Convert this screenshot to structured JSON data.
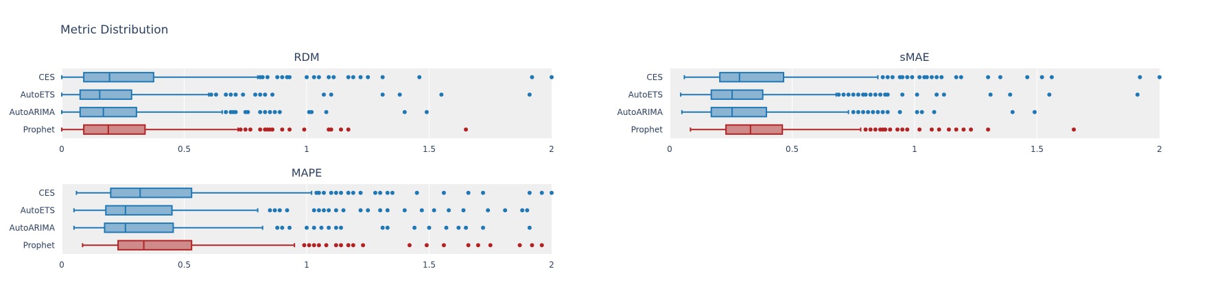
{
  "title": "Metric Distribution",
  "colors": {
    "blue": "#1f77b4",
    "blue_fill": "#8bb4d3",
    "red": "#b22222",
    "red_fill": "#cf8a8a",
    "plot_bg": "#efefef",
    "grid": "#ffffff",
    "text": "#2a3f5f"
  },
  "chart_data": [
    {
      "type": "box",
      "title": "RDM",
      "categories": [
        "CES",
        "AutoETS",
        "AutoARIMA",
        "Prophet"
      ],
      "xlim": [
        0,
        2
      ],
      "xticks": [
        "0",
        "0.5",
        "1",
        "1.5",
        "2"
      ],
      "series": [
        {
          "name": "CES",
          "color": "blue",
          "min": 0.0,
          "q1": 0.09,
          "median": 0.195,
          "q3": 0.375,
          "max": 0.8,
          "outliers": [
            0.81,
            0.82,
            0.84,
            0.88,
            0.9,
            0.92,
            0.93,
            1.0,
            1.03,
            1.05,
            1.09,
            1.11,
            1.17,
            1.19,
            1.22,
            1.25,
            1.31,
            1.46,
            1.92,
            2.0
          ]
        },
        {
          "name": "AutoETS",
          "color": "blue",
          "min": 0.0,
          "q1": 0.075,
          "median": 0.155,
          "q3": 0.285,
          "max": 0.6,
          "outliers": [
            0.61,
            0.63,
            0.67,
            0.69,
            0.71,
            0.74,
            0.79,
            0.81,
            0.83,
            0.86,
            1.07,
            1.1,
            1.31,
            1.38,
            1.55,
            1.91
          ]
        },
        {
          "name": "AutoARIMA",
          "color": "blue",
          "min": 0.0,
          "q1": 0.075,
          "median": 0.17,
          "q3": 0.305,
          "max": 0.655,
          "outliers": [
            0.67,
            0.69,
            0.7,
            0.71,
            0.75,
            0.76,
            0.81,
            0.83,
            0.85,
            0.87,
            0.89,
            1.01,
            1.02,
            1.08,
            1.4,
            1.49
          ]
        },
        {
          "name": "Prophet",
          "color": "red",
          "min": 0.0,
          "q1": 0.09,
          "median": 0.19,
          "q3": 0.34,
          "max": 0.72,
          "outliers": [
            0.73,
            0.75,
            0.77,
            0.81,
            0.83,
            0.84,
            0.85,
            0.86,
            0.9,
            0.93,
            0.99,
            1.09,
            1.1,
            1.14,
            1.17,
            1.65
          ]
        }
      ]
    },
    {
      "type": "box",
      "title": "sMAE",
      "categories": [
        "CES",
        "AutoETS",
        "AutoARIMA",
        "Prophet"
      ],
      "xlim": [
        0,
        2
      ],
      "xticks": [
        "0",
        "0.5",
        "1",
        "1.5",
        "2"
      ],
      "series": [
        {
          "name": "CES",
          "color": "blue",
          "min": 0.06,
          "q1": 0.205,
          "median": 0.285,
          "q3": 0.465,
          "max": 0.85,
          "outliers": [
            0.87,
            0.89,
            0.91,
            0.94,
            0.95,
            0.97,
            0.99,
            1.02,
            1.04,
            1.05,
            1.07,
            1.09,
            1.11,
            1.17,
            1.19,
            1.3,
            1.35,
            1.46,
            1.52,
            1.56,
            1.92,
            2.0
          ]
        },
        {
          "name": "AutoETS",
          "color": "blue",
          "min": 0.045,
          "q1": 0.17,
          "median": 0.255,
          "q3": 0.38,
          "max": 0.68,
          "outliers": [
            0.69,
            0.71,
            0.73,
            0.75,
            0.77,
            0.79,
            0.8,
            0.82,
            0.84,
            0.86,
            0.88,
            0.89,
            0.95,
            1.01,
            1.09,
            1.12,
            1.31,
            1.39,
            1.55,
            1.91
          ]
        },
        {
          "name": "AutoARIMA",
          "color": "blue",
          "min": 0.05,
          "q1": 0.17,
          "median": 0.255,
          "q3": 0.395,
          "max": 0.73,
          "outliers": [
            0.75,
            0.77,
            0.79,
            0.81,
            0.83,
            0.85,
            0.87,
            0.89,
            0.94,
            1.01,
            1.03,
            1.08,
            1.4,
            1.49
          ]
        },
        {
          "name": "Prophet",
          "color": "red",
          "min": 0.085,
          "q1": 0.23,
          "median": 0.33,
          "q3": 0.46,
          "max": 0.78,
          "outliers": [
            0.8,
            0.82,
            0.84,
            0.86,
            0.87,
            0.88,
            0.9,
            0.93,
            0.95,
            0.97,
            1.02,
            1.07,
            1.1,
            1.14,
            1.17,
            1.2,
            1.23,
            1.3,
            1.65
          ]
        }
      ]
    },
    {
      "type": "box",
      "title": "MAPE",
      "categories": [
        "CES",
        "AutoETS",
        "AutoARIMA",
        "Prophet"
      ],
      "xlim": [
        0,
        2
      ],
      "xticks": [
        "0",
        "0.5",
        "1",
        "1.5",
        "2"
      ],
      "series": [
        {
          "name": "CES",
          "color": "blue",
          "min": 0.06,
          "q1": 0.2,
          "median": 0.32,
          "q3": 0.53,
          "max": 1.02,
          "outliers": [
            1.04,
            1.05,
            1.07,
            1.1,
            1.12,
            1.14,
            1.17,
            1.19,
            1.22,
            1.28,
            1.3,
            1.33,
            1.35,
            1.45,
            1.56,
            1.66,
            1.72,
            1.91,
            1.96,
            2.0
          ]
        },
        {
          "name": "AutoETS",
          "color": "blue",
          "min": 0.05,
          "q1": 0.18,
          "median": 0.26,
          "q3": 0.45,
          "max": 0.8,
          "outliers": [
            0.85,
            0.87,
            0.89,
            0.92,
            1.03,
            1.05,
            1.07,
            1.09,
            1.12,
            1.15,
            1.22,
            1.25,
            1.3,
            1.33,
            1.4,
            1.47,
            1.52,
            1.58,
            1.64,
            1.74,
            1.81,
            1.88,
            1.9
          ]
        },
        {
          "name": "AutoARIMA",
          "color": "blue",
          "min": 0.05,
          "q1": 0.175,
          "median": 0.26,
          "q3": 0.455,
          "max": 0.82,
          "outliers": [
            0.88,
            0.9,
            0.93,
            1.0,
            1.03,
            1.06,
            1.09,
            1.12,
            1.14,
            1.31,
            1.33,
            1.44,
            1.5,
            1.57,
            1.62,
            1.65,
            1.72,
            1.91
          ]
        },
        {
          "name": "Prophet",
          "color": "red",
          "min": 0.085,
          "q1": 0.23,
          "median": 0.335,
          "q3": 0.53,
          "max": 0.95,
          "outliers": [
            0.99,
            1.01,
            1.03,
            1.05,
            1.08,
            1.12,
            1.14,
            1.17,
            1.19,
            1.23,
            1.42,
            1.49,
            1.56,
            1.66,
            1.7,
            1.75,
            1.87,
            1.92,
            1.96
          ]
        }
      ]
    }
  ]
}
